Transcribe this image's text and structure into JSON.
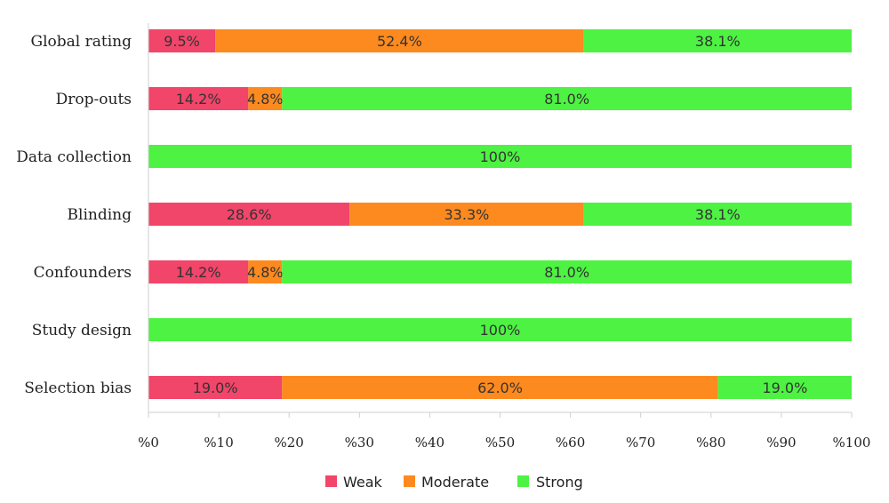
{
  "chart_data": {
    "type": "bar",
    "orientation": "horizontal",
    "stacked": true,
    "categories": [
      "Global rating",
      "Drop-outs",
      "Data collection",
      "Blinding",
      "Confounders",
      "Study design",
      "Selection bias"
    ],
    "series": [
      {
        "name": "Weak",
        "color": "#f2456a",
        "values": [
          9.5,
          14.2,
          0,
          28.6,
          14.2,
          0,
          19.0
        ],
        "labels": [
          "9.5%",
          "14.2%",
          "",
          "28.6%",
          "14.2%",
          "",
          "19.0%"
        ]
      },
      {
        "name": "Moderate",
        "color": "#fd8a1f",
        "values": [
          52.4,
          4.8,
          0,
          33.3,
          4.8,
          0,
          62.0
        ],
        "labels": [
          "52.4%",
          "4.8%",
          "",
          "33.3%",
          "4.8%",
          "",
          "62.0%"
        ]
      },
      {
        "name": "Strong",
        "color": "#4df242",
        "values": [
          38.1,
          81.0,
          100,
          38.1,
          81.0,
          100,
          19.0
        ],
        "labels": [
          "38.1%",
          "81.0%",
          "100%",
          "38.1%",
          "81.0%",
          "100%",
          "19.0%"
        ]
      }
    ],
    "xlim": [
      0,
      100
    ],
    "xticks": [
      0,
      10,
      20,
      30,
      40,
      50,
      60,
      70,
      80,
      90,
      100
    ],
    "xtick_labels": [
      "%0",
      "%10",
      "%20",
      "%30",
      "%40",
      "%50",
      "%60",
      "%70",
      "%80",
      "%90",
      "%100"
    ],
    "title": "",
    "xlabel": "",
    "ylabel": "",
    "grid": false,
    "legend_position": "bottom"
  }
}
